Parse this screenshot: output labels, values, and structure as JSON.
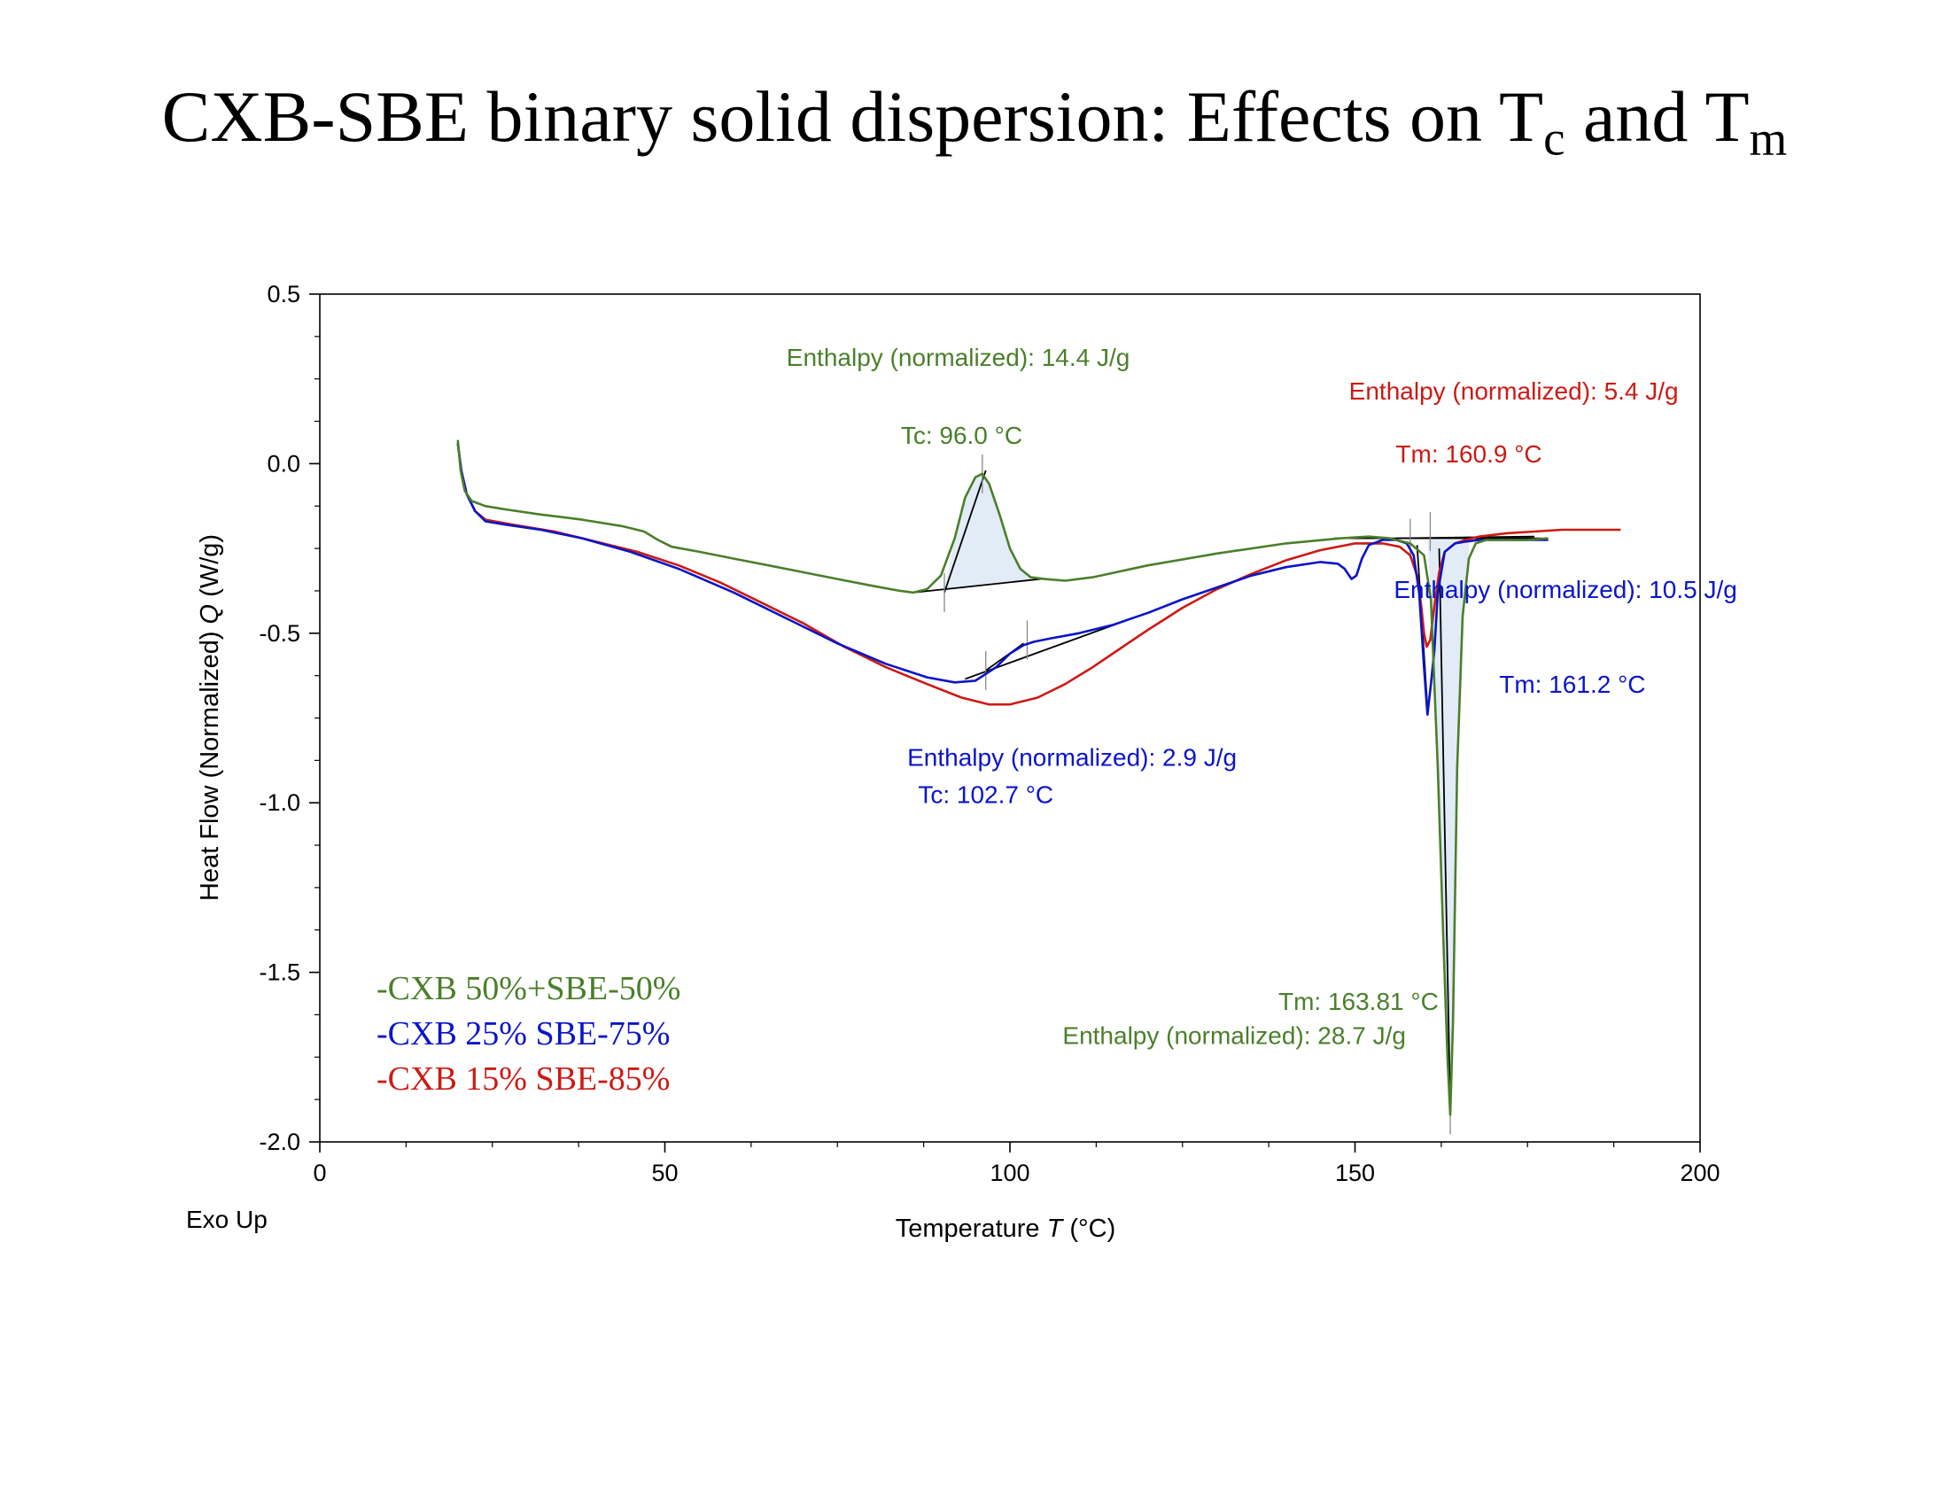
{
  "title": {
    "main": "CXB-SBE binary solid dispersion: Effects on T",
    "sub1": "c",
    "mid": " and T",
    "sub2": "m"
  },
  "chart_data": {
    "type": "line",
    "xlabel": "Temperature",
    "xlabel_var": "T",
    "xlabel_unit": "(°C)",
    "ylabel": "Heat Flow (Normalized)",
    "ylabel_var": "Q",
    "ylabel_unit": "(W/g)",
    "corner_label": "Exo Up",
    "xlim": [
      0,
      200
    ],
    "ylim": [
      -2.0,
      0.5
    ],
    "xticks": [
      0,
      50,
      100,
      150,
      200
    ],
    "xtick_labels": [
      "0",
      "50",
      "100",
      "150",
      "200"
    ],
    "yticks": [
      0.5,
      0.0,
      -0.5,
      -1.0,
      -1.5,
      -2.0
    ],
    "ytick_labels": [
      "0.5",
      "0.0",
      "-0.5",
      "-1.0",
      "-1.5",
      "-2.0"
    ],
    "grid": false,
    "legend_position": "bottom-left",
    "series": [
      {
        "name": "-CXB 50%+SBE-50%",
        "color": "#4a7f2a",
        "x": [
          20.0,
          20.4,
          21.0,
          22.0,
          24.0,
          27.0,
          32.0,
          38.0,
          44.0,
          47.0,
          49.0,
          51.0,
          55.0,
          60.0,
          65.0,
          70.0,
          75.0,
          80.0,
          84.0,
          86.0,
          88.0,
          90.0,
          92.0,
          93.5,
          95.0,
          96.0,
          97.0,
          98.5,
          100.0,
          101.5,
          103.0,
          105.0,
          108.0,
          112.0,
          120.0,
          130.0,
          140.0,
          148.0,
          152.0,
          155.0,
          158.0,
          160.0,
          161.0,
          162.0,
          162.8,
          163.4,
          163.8,
          164.2,
          164.8,
          165.6,
          166.5,
          167.5,
          169.0,
          172.0,
          175.0,
          178.0
        ],
        "y": [
          0.07,
          -0.02,
          -0.08,
          -0.11,
          -0.125,
          -0.135,
          -0.15,
          -0.165,
          -0.185,
          -0.2,
          -0.225,
          -0.245,
          -0.26,
          -0.28,
          -0.3,
          -0.32,
          -0.34,
          -0.36,
          -0.375,
          -0.38,
          -0.37,
          -0.33,
          -0.22,
          -0.1,
          -0.04,
          -0.03,
          -0.06,
          -0.15,
          -0.25,
          -0.31,
          -0.335,
          -0.34,
          -0.345,
          -0.335,
          -0.3,
          -0.265,
          -0.235,
          -0.22,
          -0.215,
          -0.22,
          -0.235,
          -0.27,
          -0.4,
          -0.9,
          -1.4,
          -1.75,
          -1.92,
          -1.65,
          -0.9,
          -0.45,
          -0.28,
          -0.235,
          -0.225,
          -0.225,
          -0.225,
          -0.22
        ]
      },
      {
        "name": "-CXB 25% SBE-75%",
        "color": "#0a14c8",
        "x": [
          20.0,
          20.5,
          21.3,
          22.5,
          24.0,
          27.0,
          32.0,
          38.0,
          45.0,
          52.0,
          60.0,
          68.0,
          75.0,
          82.0,
          88.0,
          92.0,
          95.0,
          98.0,
          100.0,
          102.0,
          103.5,
          106.0,
          110.0,
          115.0,
          120.0,
          125.0,
          130.0,
          135.0,
          140.0,
          145.0,
          147.5,
          148.5,
          149.5,
          150.2,
          151.0,
          152.0,
          154.0,
          156.0,
          157.5,
          158.5,
          159.3,
          160.0,
          160.5,
          161.0,
          161.5,
          162.0,
          163.0,
          164.5,
          166.0,
          168.0,
          172.0,
          178.0
        ],
        "y": [
          0.06,
          -0.02,
          -0.09,
          -0.14,
          -0.17,
          -0.18,
          -0.195,
          -0.22,
          -0.26,
          -0.31,
          -0.38,
          -0.46,
          -0.53,
          -0.59,
          -0.63,
          -0.645,
          -0.64,
          -0.6,
          -0.56,
          -0.535,
          -0.525,
          -0.515,
          -0.5,
          -0.475,
          -0.44,
          -0.4,
          -0.365,
          -0.33,
          -0.305,
          -0.29,
          -0.295,
          -0.31,
          -0.34,
          -0.33,
          -0.28,
          -0.24,
          -0.225,
          -0.225,
          -0.235,
          -0.27,
          -0.38,
          -0.6,
          -0.74,
          -0.65,
          -0.55,
          -0.38,
          -0.26,
          -0.235,
          -0.23,
          -0.225,
          -0.225,
          -0.225
        ]
      },
      {
        "name": "-CXB 15% SBE-85%",
        "color": "#cc1a14",
        "x": [
          20.0,
          20.5,
          21.3,
          22.5,
          24.0,
          28.0,
          34.0,
          40.0,
          46.0,
          52.0,
          58.0,
          64.0,
          70.0,
          76.0,
          82.0,
          88.0,
          93.0,
          97.0,
          100.0,
          104.0,
          108.0,
          112.0,
          116.0,
          120.0,
          125.0,
          130.0,
          135.0,
          140.0,
          145.0,
          150.0,
          154.0,
          156.5,
          158.0,
          159.0,
          159.6,
          160.0,
          160.4,
          160.9,
          161.5,
          162.2,
          163.0,
          164.5,
          166.0,
          168.0,
          172.0,
          176.0,
          180.0,
          184.0,
          188.5
        ],
        "y": [
          0.06,
          -0.02,
          -0.09,
          -0.14,
          -0.165,
          -0.18,
          -0.2,
          -0.23,
          -0.26,
          -0.3,
          -0.35,
          -0.41,
          -0.47,
          -0.54,
          -0.6,
          -0.65,
          -0.69,
          -0.71,
          -0.71,
          -0.69,
          -0.65,
          -0.6,
          -0.545,
          -0.49,
          -0.425,
          -0.37,
          -0.325,
          -0.285,
          -0.255,
          -0.235,
          -0.235,
          -0.245,
          -0.27,
          -0.33,
          -0.42,
          -0.5,
          -0.54,
          -0.52,
          -0.42,
          -0.32,
          -0.26,
          -0.235,
          -0.225,
          -0.215,
          -0.205,
          -0.2,
          -0.195,
          -0.195,
          -0.195
        ]
      }
    ],
    "baselines": [
      {
        "color": "#000000",
        "x": [
          86.0,
          104.5
        ],
        "y": [
          -0.38,
          -0.34
        ]
      },
      {
        "color": "#000000",
        "x": [
          90.5,
          96.5
        ],
        "y": [
          -0.38,
          -0.02
        ]
      },
      {
        "color": "#000000",
        "x": [
          93.5,
          116.5
        ],
        "y": [
          -0.635,
          -0.465
        ]
      },
      {
        "color": "#000000",
        "x": [
          96.5,
          102.0
        ],
        "y": [
          -0.61,
          -0.53
        ]
      },
      {
        "color": "#000000",
        "x": [
          147.0,
          177.0
        ],
        "y": [
          -0.22,
          -0.22
        ]
      },
      {
        "color": "#000000",
        "x": [
          156.0,
          176.0
        ],
        "y": [
          -0.22,
          -0.215
        ]
      },
      {
        "color": "#000000",
        "x": [
          159.0,
          160.5
        ],
        "y": [
          -0.24,
          -0.72
        ]
      },
      {
        "color": "#000000",
        "x": [
          162.2,
          163.8
        ],
        "y": [
          -0.25,
          -1.9
        ]
      }
    ],
    "annotations": [
      {
        "text": "Enthalpy (normalized): 14.4 J/g",
        "color": "#4a7f2a",
        "x": 92.5,
        "y": 0.315
      },
      {
        "text": "Tc: 96.0 °C",
        "color": "#4a7f2a",
        "x": 93.0,
        "y": 0.085
      },
      {
        "text": "Enthalpy (normalized): 5.4 J/g",
        "color": "#cc1a14",
        "x": 173.0,
        "y": 0.215
      },
      {
        "text": "Tm: 160.9 °C",
        "color": "#cc1a14",
        "x": 166.5,
        "y": 0.03
      },
      {
        "text": "Enthalpy (normalized): 10.5 J/g",
        "color": "#0a14c8",
        "x": 180.5,
        "y": -0.37
      },
      {
        "text": "Tm: 161.2 °C",
        "color": "#0a14c8",
        "x": 181.5,
        "y": -0.65
      },
      {
        "text": "Enthalpy (normalized): 2.9 J/g",
        "color": "#0a14c8",
        "x": 109.0,
        "y": -0.865
      },
      {
        "text": "Tc: 102.7 °C",
        "color": "#0a14c8",
        "x": 96.5,
        "y": -0.975
      },
      {
        "text": "Tm: 163.81 °C",
        "color": "#4a7f2a",
        "x": 150.5,
        "y": -1.585
      },
      {
        "text": "Enthalpy (normalized): 28.7 J/g",
        "color": "#4a7f2a",
        "x": 132.5,
        "y": -1.685
      }
    ]
  }
}
